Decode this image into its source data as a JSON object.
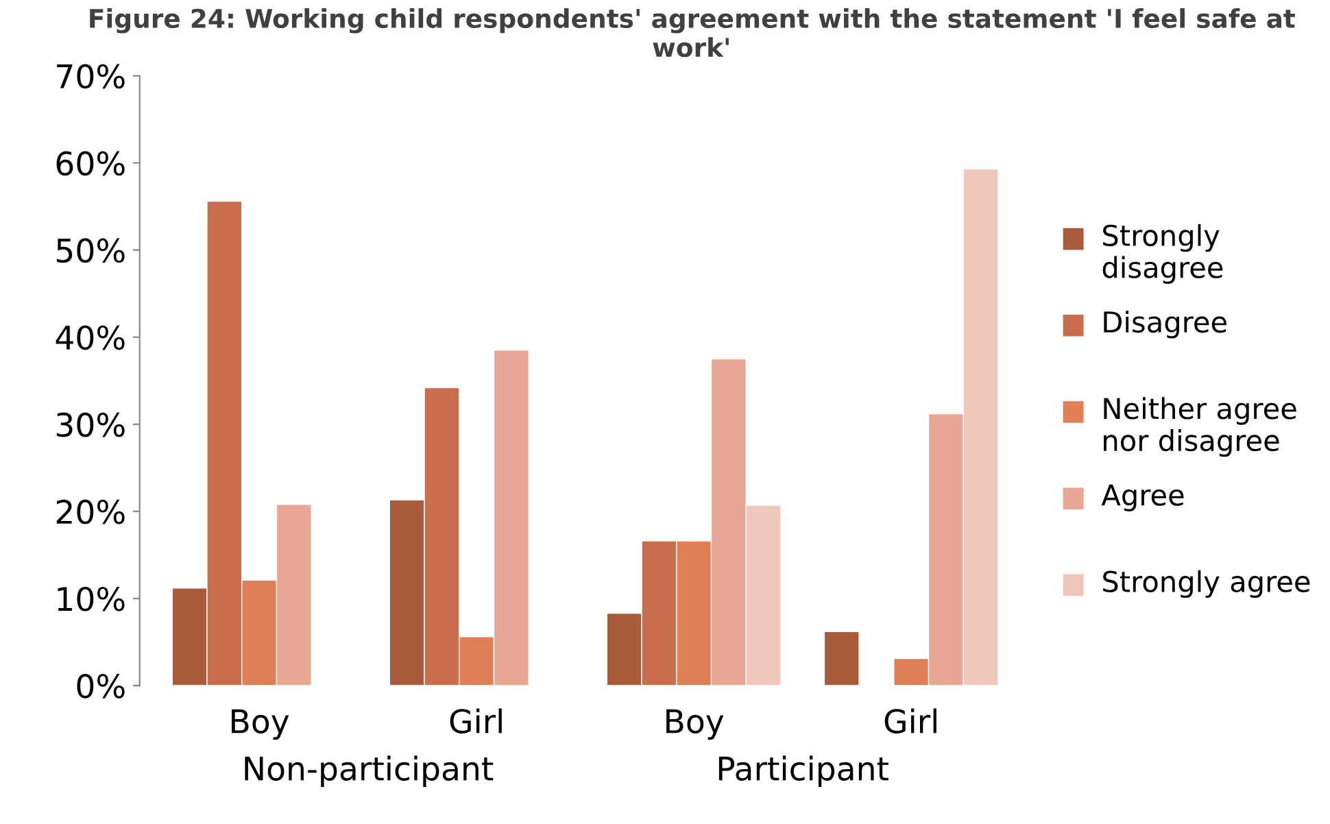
{
  "chart_data": {
    "type": "bar",
    "title": "Figure 24: Working child respondents' agreement with the statement 'I feel safe at work'",
    "categories": [
      "Boy",
      "Girl",
      "Boy",
      "Girl"
    ],
    "series": [
      {
        "name": "Strongly disagree",
        "color": "#a95c3c",
        "values": [
          11.2,
          21.3,
          8.3,
          6.2
        ]
      },
      {
        "name": "Disagree",
        "color": "#c86e4c",
        "values": [
          55.6,
          34.2,
          16.6,
          null
        ]
      },
      {
        "name": "Neither agree nor disagree",
        "color": "#e07f56",
        "values": [
          12.1,
          5.6,
          16.6,
          3.1
        ]
      },
      {
        "name": "Agree",
        "color": "#e8a794",
        "values": [
          20.8,
          38.5,
          37.5,
          31.2
        ]
      },
      {
        "name": "Strongly agree",
        "color": "#f0c6bc",
        "values": [
          null,
          null,
          20.7,
          59.3
        ]
      }
    ],
    "annotations": [
      "Non-participant",
      "Participant"
    ],
    "ylim": [
      0,
      70
    ],
    "yticks": [
      {
        "value": 0,
        "label": "0%"
      },
      {
        "value": 10,
        "label": "10%"
      },
      {
        "value": 20,
        "label": "20%"
      },
      {
        "value": 30,
        "label": "30%"
      },
      {
        "value": 40,
        "label": "40%"
      },
      {
        "value": 50,
        "label": "50%"
      },
      {
        "value": 60,
        "label": "60%"
      },
      {
        "value": 70,
        "label": "70%"
      }
    ],
    "legend": "right",
    "grid": false
  }
}
